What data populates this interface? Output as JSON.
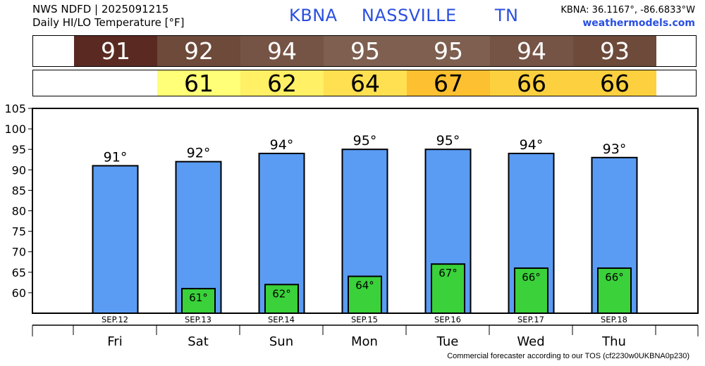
{
  "header": {
    "line1": "NWS NDFD | 2025091215",
    "line2": "Daily HI/LO Temperature [°F]",
    "station": "KBNA",
    "city": "NASSVILLE",
    "state": "TN",
    "coords": "KBNA: 36.1167°, -86.6833°W",
    "site": "weathermodels.com"
  },
  "strip": {
    "hi_colors": [
      "#5a2a22",
      "#6e4a3a",
      "#765445",
      "#7e5f50",
      "#7e5f50",
      "#765445",
      "#6e4a3a"
    ],
    "lo_colors": [
      "#ffff78",
      "#fff066",
      "#ffe050",
      "#fcc030",
      "#fdd040",
      "#fdd040"
    ]
  },
  "footer": "Commercial forecaster according to our TOS (cf2230w0UKBNA0p230)",
  "chart_data": {
    "type": "bar",
    "days": [
      "Fri",
      "Sat",
      "Sun",
      "Mon",
      "Tue",
      "Wed",
      "Thu"
    ],
    "dates": [
      "SEP.12",
      "SEP.13",
      "SEP.14",
      "SEP.15",
      "SEP.16",
      "SEP.17",
      "SEP.18"
    ],
    "series": [
      {
        "name": "HI",
        "values": [
          91,
          92,
          94,
          95,
          95,
          94,
          93
        ],
        "labels": [
          "91°",
          "92°",
          "94°",
          "95°",
          "95°",
          "94°",
          "93°"
        ],
        "color": "#5a9cf4"
      },
      {
        "name": "LO",
        "values": [
          null,
          61,
          62,
          64,
          67,
          66,
          66
        ],
        "labels": [
          "",
          "61°",
          "62°",
          "64°",
          "67°",
          "66°",
          "66°"
        ],
        "color": "#3ad13a"
      }
    ],
    "hi_strip": [
      "91",
      "92",
      "94",
      "95",
      "95",
      "94",
      "93"
    ],
    "lo_strip": [
      "61",
      "62",
      "64",
      "67",
      "66",
      "66"
    ],
    "yticks": [
      "60",
      "65",
      "70",
      "75",
      "80",
      "85",
      "90",
      "95",
      "100",
      "105"
    ],
    "ylim": [
      55,
      105
    ],
    "grid": false
  }
}
